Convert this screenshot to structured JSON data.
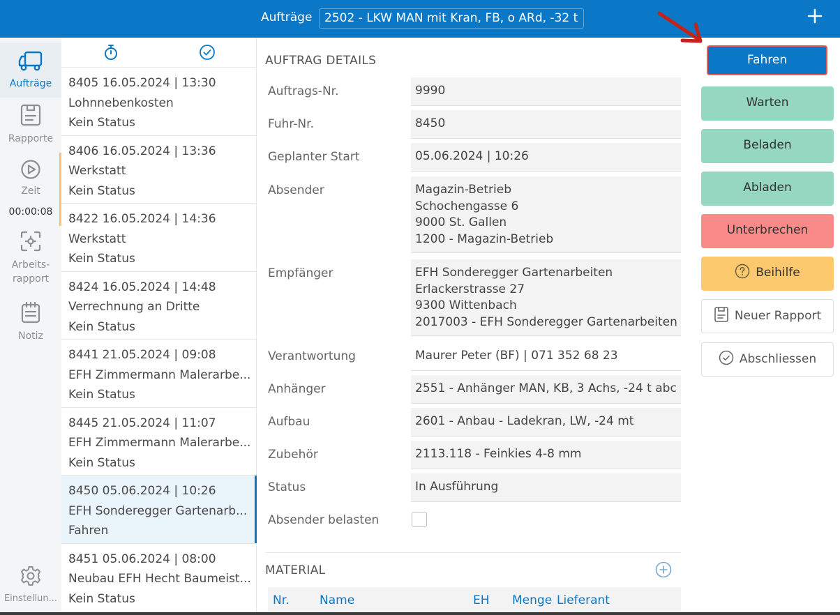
{
  "header": {
    "title": "Aufträge",
    "vehicle": "2502 - LKW MAN mit Kran, FB, o ARd, -32 t",
    "add_icon": "plus-icon"
  },
  "nav": {
    "items": [
      {
        "label": "Aufträge",
        "icon": "truck-icon",
        "active": true
      },
      {
        "label": "Rapporte",
        "icon": "report-icon"
      },
      {
        "label": "Zeit",
        "icon": "play-icon"
      },
      {
        "label": "Arbeits-\nrapport",
        "icon": "scan-icon"
      },
      {
        "label": "Notiz",
        "icon": "notepad-icon"
      },
      {
        "label": "Einstellun...",
        "icon": "gear-icon"
      }
    ],
    "timer": "00:00:08"
  },
  "list": {
    "items": [
      {
        "line1": "8405  16.05.2024 | 13:30",
        "line2": "Lohnnebenkosten",
        "line3": "Kein Status"
      },
      {
        "line1": "8406  16.05.2024 | 13:36",
        "line2": "Werkstatt",
        "line3": "Kein Status"
      },
      {
        "line1": "8422  16.05.2024 | 14:36",
        "line2": "Werkstatt",
        "line3": "Kein Status"
      },
      {
        "line1": "8424  16.05.2024 | 14:48",
        "line2": "Verrechnung an Dritte",
        "line3": "Kein Status"
      },
      {
        "line1": "8441  21.05.2024 | 09:08",
        "line2": "EFH Zimmermann Malerarbe...",
        "line3": "Kein Status"
      },
      {
        "line1": "8445  21.05.2024 | 11:07",
        "line2": "EFH Zimmermann Malerarbe...",
        "line3": "Kein Status"
      },
      {
        "line1": "8450  05.06.2024 | 10:26",
        "line2": "EFH Sonderegger Gartenarb...",
        "line3": "Fahren"
      },
      {
        "line1": "8451  05.06.2024 | 08:00",
        "line2": "Neubau EFH Hecht Baumeist...",
        "line3": "Kein Status"
      }
    ]
  },
  "details": {
    "section_title": "AUFTRAG DETAILS",
    "fields": {
      "auftrags_nr": {
        "label": "Auftrags-Nr.",
        "value": "9990"
      },
      "fuhr_nr": {
        "label": "Fuhr-Nr.",
        "value": "8450"
      },
      "geplanter_start": {
        "label": "Geplanter Start",
        "value": "05.06.2024 | 10:26"
      },
      "absender": {
        "label": "Absender",
        "lines": [
          "Magazin-Betrieb",
          "Schochengasse 6",
          "9000 St. Gallen",
          "1200 - Magazin-Betrieb"
        ]
      },
      "empfaenger": {
        "label": "Empfänger",
        "lines": [
          "EFH Sonderegger Gartenarbeiten",
          "Erlackerstrasse 27",
          "9300 Wittenbach",
          "2017003 - EFH Sonderegger Gartenarbeiten"
        ]
      },
      "verantwortung": {
        "label": "Verantwortung",
        "value": "Maurer Peter (BF) | 071 352 68 23"
      },
      "anhaenger": {
        "label": "Anhänger",
        "value": "2551 - Anhänger MAN, KB, 3 Achs, -24 t abc"
      },
      "aufbau": {
        "label": "Aufbau",
        "value": "2601 - Anbau - Ladekran, LW, -24 mt"
      },
      "zubehoer": {
        "label": "Zubehör",
        "value": "2113.118 - Feinkies 4-8 mm"
      },
      "status": {
        "label": "Status",
        "value": "In Ausführung"
      },
      "absender_belasten": {
        "label": "Absender belasten",
        "checked": false
      }
    },
    "material": {
      "title": "MATERIAL",
      "columns": [
        "Nr.",
        "Name",
        "EH",
        "Menge",
        "Lieferant"
      ]
    }
  },
  "actions": {
    "fahren": "Fahren",
    "warten": "Warten",
    "beladen": "Beladen",
    "abladen": "Abladen",
    "unterbrechen": "Unterbrechen",
    "beihilfe": "Beihilfe",
    "neuer_rapport": "Neuer Rapport",
    "abschliessen": "Abschliessen"
  },
  "colors": {
    "primary": "#0a78c7",
    "green": "#95d7c1",
    "red": "#f88a8a",
    "yellow": "#fcc96f",
    "arrow": "#c4221b"
  }
}
